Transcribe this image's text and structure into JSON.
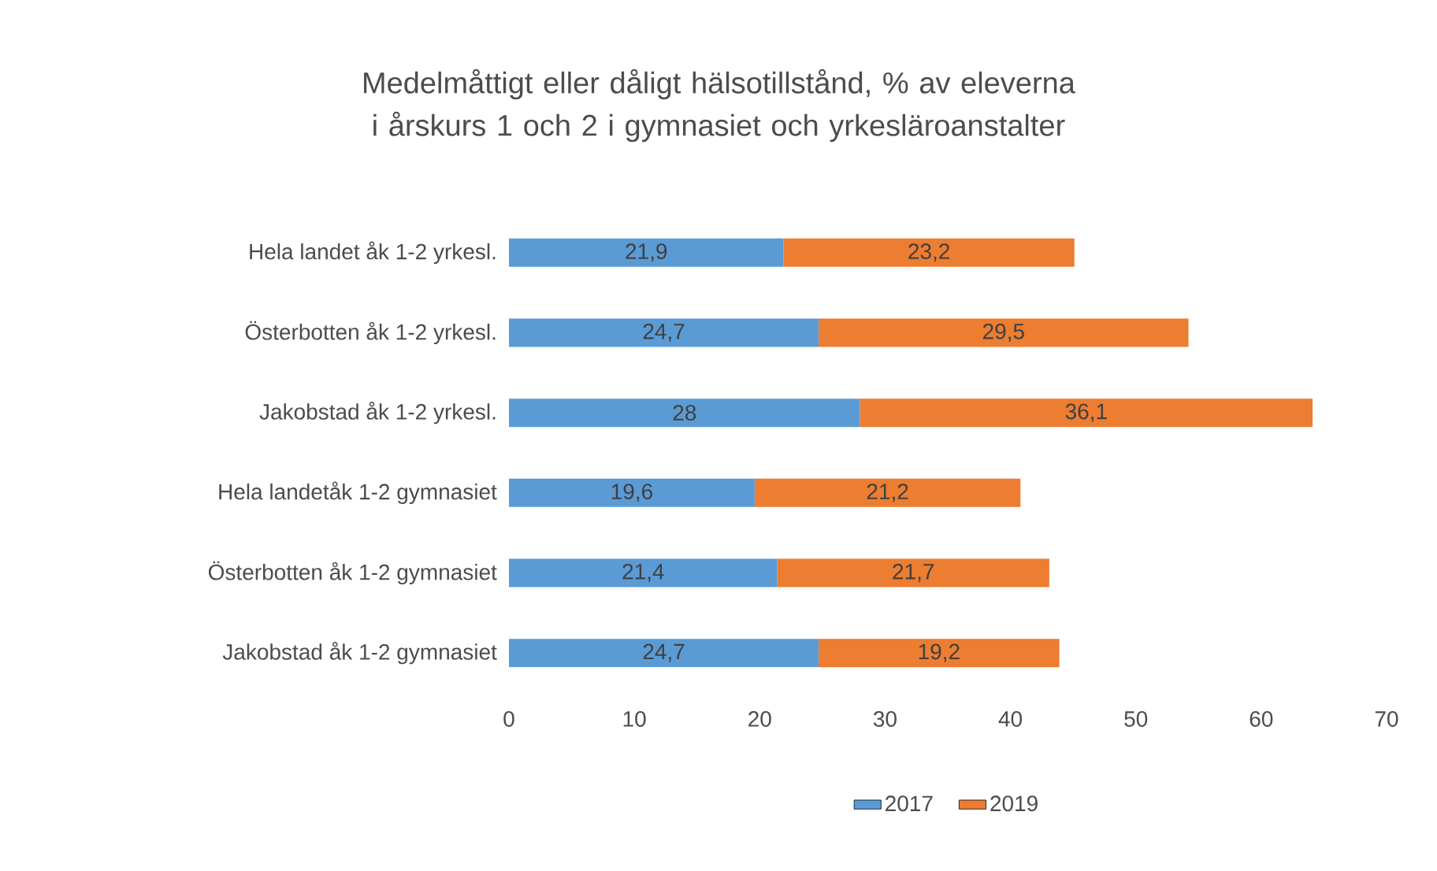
{
  "chart_data": {
    "type": "bar",
    "orientation": "horizontal",
    "stacked": true,
    "title": "Medelmåttigt eller dåligt hälsotillstånd, % av eleverna i årskurs 1 och 2 i gymnasiet och yrkesläroanstalter",
    "categories": [
      "Hela landet åk 1-2 yrkesl.",
      "Österbotten åk 1-2 yrkesl.",
      "Jakobstad åk 1-2 yrkesl.",
      "Hela landetåk 1-2 gymnasiet",
      "Österbotten åk 1-2 gymnasiet",
      "Jakobstad åk 1-2 gymnasiet"
    ],
    "series": [
      {
        "name": "2017",
        "color": "#5b9bd5",
        "values": [
          21.9,
          24.7,
          28,
          19.6,
          21.4,
          24.7
        ],
        "value_labels": [
          "21,9",
          "24,7",
          "28",
          "19,6",
          "21,4",
          "24,7"
        ]
      },
      {
        "name": "2019",
        "color": "#ed7d31",
        "values": [
          23.2,
          29.5,
          36.1,
          21.2,
          21.7,
          19.2
        ],
        "value_labels": [
          "23,2",
          "29,5",
          "36,1",
          "21,2",
          "21,7",
          "19,2"
        ]
      }
    ],
    "xlim": [
      0,
      70
    ],
    "xticks": [
      0,
      10,
      20,
      30,
      40,
      50,
      60,
      70
    ],
    "grid": false,
    "legend": "bottom"
  }
}
